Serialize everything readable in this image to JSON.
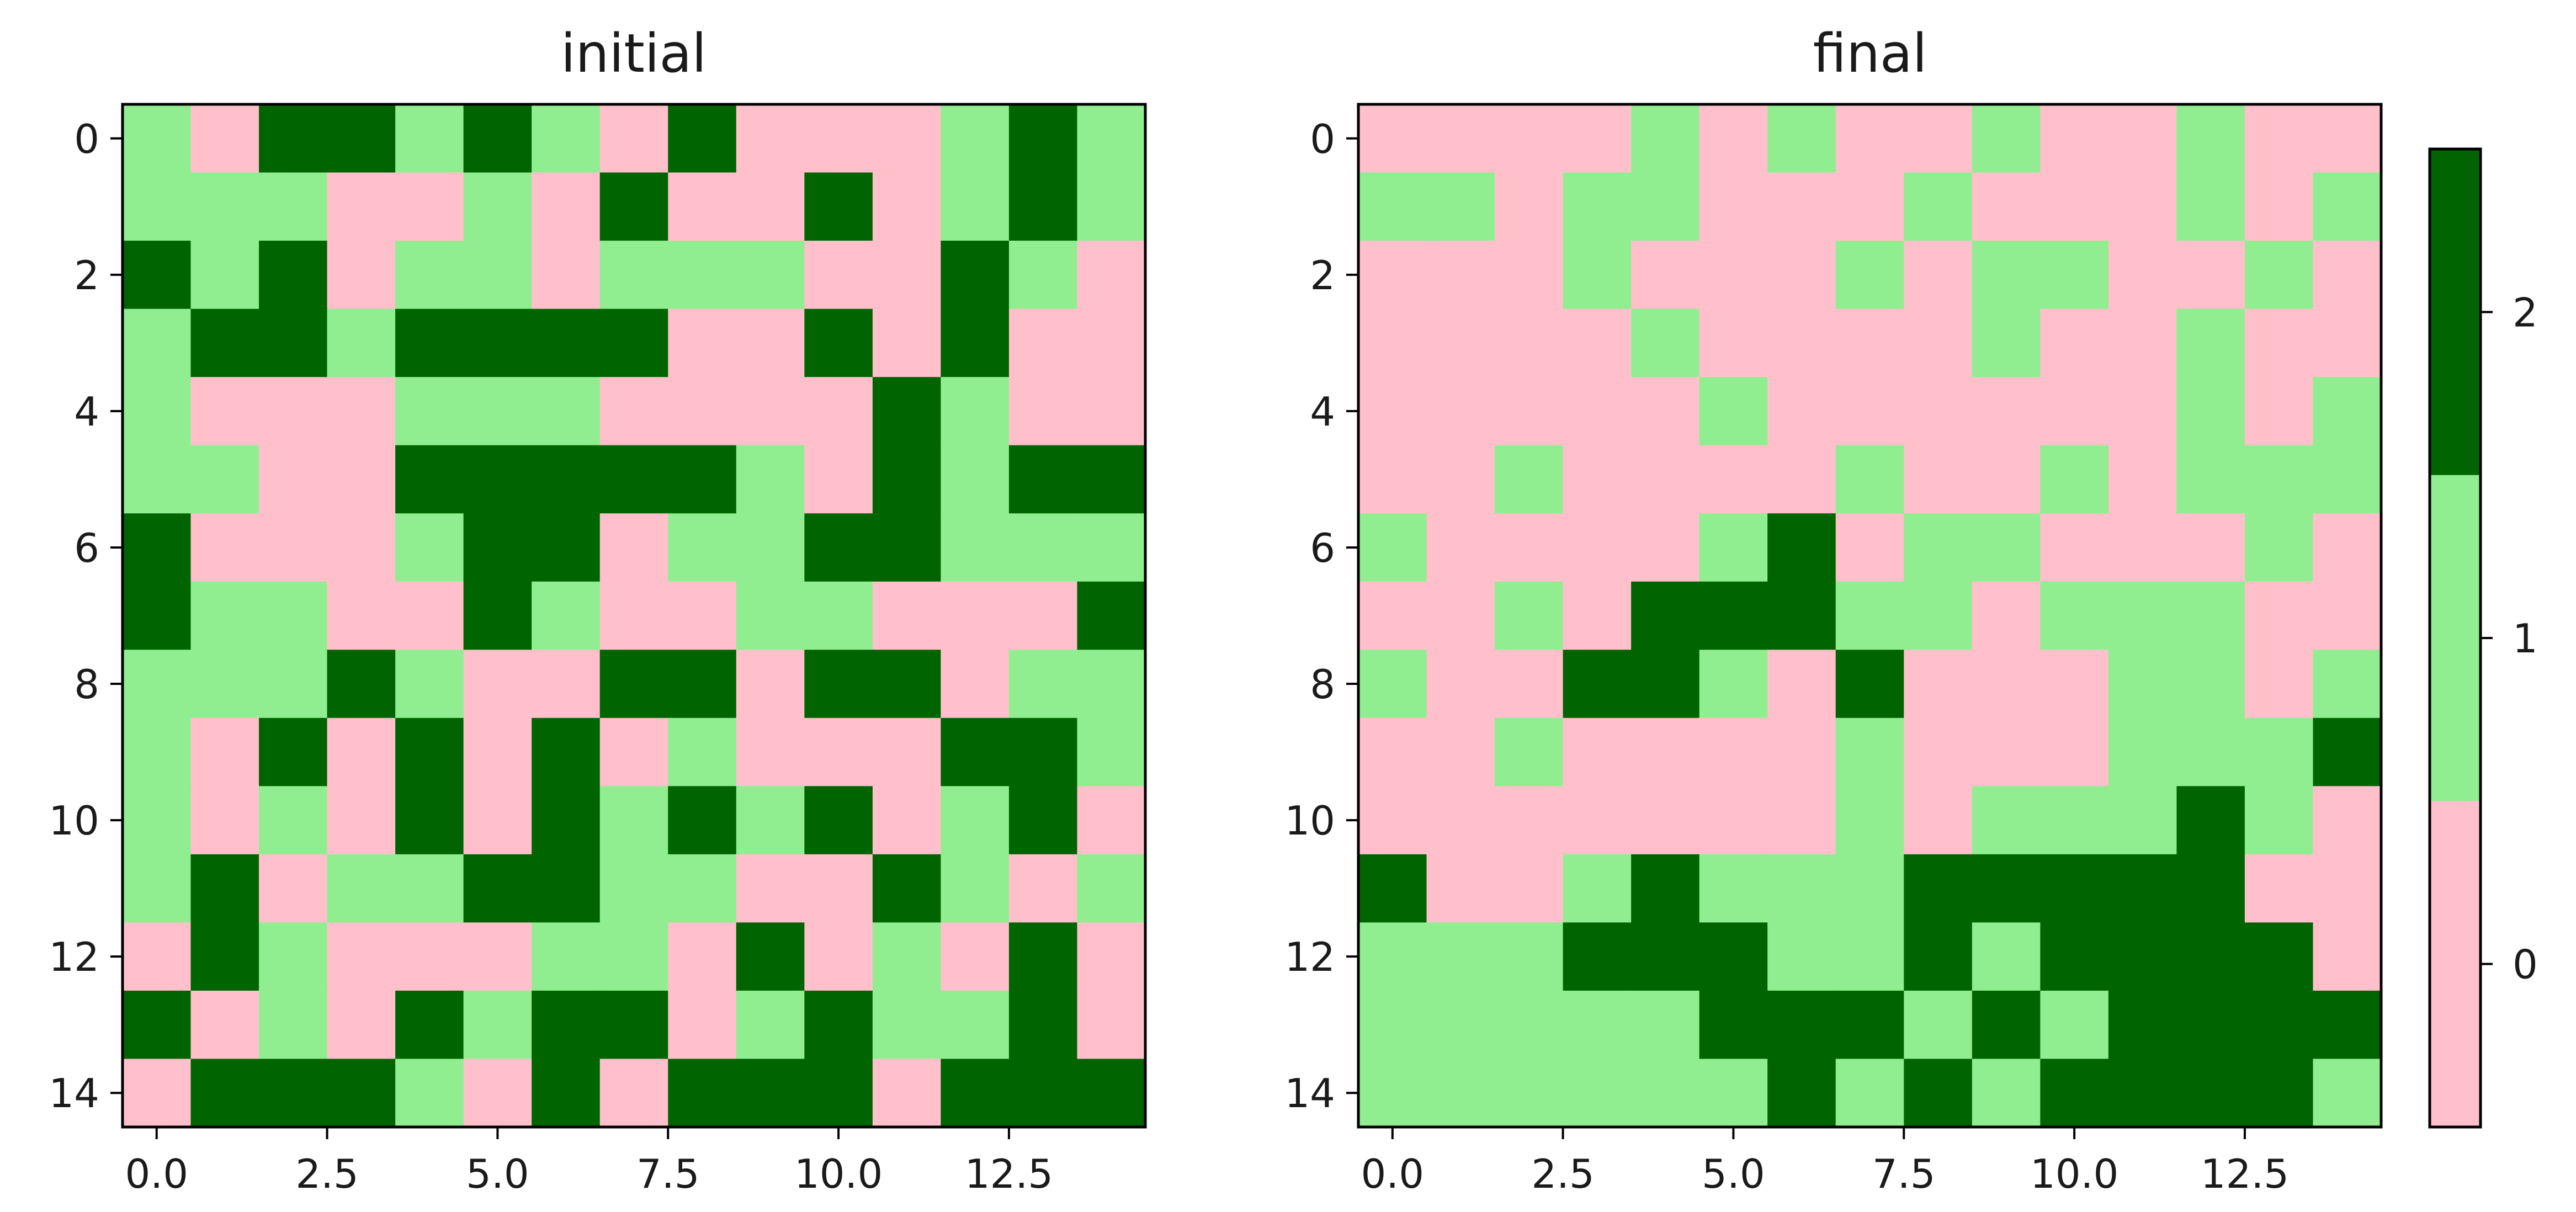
{
  "colors": {
    "0": "#ffc0cb",
    "1": "#90ee90",
    "2": "#006400"
  },
  "colorbar": {
    "ticks": [
      "0",
      "1",
      "2"
    ]
  },
  "chart_data": [
    {
      "type": "heatmap",
      "title": "initial",
      "xticks": [
        "0.0",
        "2.5",
        "5.0",
        "7.5",
        "10.0",
        "12.5"
      ],
      "yticks": [
        "0",
        "2",
        "4",
        "6",
        "8",
        "10",
        "12",
        "14"
      ],
      "xlim": [
        -0.5,
        14.5
      ],
      "ylim": [
        14.5,
        -0.5
      ],
      "values": [
        [
          1,
          0,
          2,
          2,
          1,
          2,
          1,
          0,
          2,
          0,
          0,
          0,
          1,
          2,
          1
        ],
        [
          1,
          1,
          1,
          0,
          0,
          1,
          0,
          2,
          0,
          0,
          2,
          0,
          1,
          2,
          1
        ],
        [
          2,
          1,
          2,
          0,
          1,
          1,
          0,
          1,
          1,
          1,
          0,
          0,
          2,
          1,
          0
        ],
        [
          1,
          2,
          2,
          1,
          2,
          2,
          2,
          2,
          0,
          0,
          2,
          0,
          2,
          0,
          0
        ],
        [
          1,
          0,
          0,
          0,
          1,
          1,
          1,
          0,
          0,
          0,
          0,
          2,
          1,
          0,
          0
        ],
        [
          1,
          1,
          0,
          0,
          2,
          2,
          2,
          2,
          2,
          1,
          0,
          2,
          1,
          2,
          2
        ],
        [
          2,
          0,
          0,
          0,
          1,
          2,
          2,
          0,
          1,
          1,
          2,
          2,
          1,
          1,
          1
        ],
        [
          2,
          1,
          1,
          0,
          0,
          2,
          1,
          0,
          0,
          1,
          1,
          0,
          0,
          0,
          2
        ],
        [
          1,
          1,
          1,
          2,
          1,
          0,
          0,
          2,
          2,
          0,
          2,
          2,
          0,
          1,
          1
        ],
        [
          1,
          0,
          2,
          0,
          2,
          0,
          2,
          0,
          1,
          0,
          0,
          0,
          2,
          2,
          1
        ],
        [
          1,
          0,
          1,
          0,
          2,
          0,
          2,
          1,
          2,
          1,
          2,
          0,
          1,
          2,
          0
        ],
        [
          1,
          2,
          0,
          1,
          1,
          2,
          2,
          1,
          1,
          0,
          0,
          2,
          1,
          0,
          1
        ],
        [
          0,
          2,
          1,
          0,
          0,
          0,
          1,
          1,
          0,
          2,
          0,
          1,
          0,
          2,
          0
        ],
        [
          2,
          0,
          1,
          0,
          2,
          1,
          2,
          2,
          0,
          1,
          2,
          1,
          1,
          2,
          0
        ],
        [
          0,
          2,
          2,
          2,
          1,
          0,
          2,
          0,
          2,
          2,
          2,
          0,
          2,
          2,
          2
        ]
      ]
    },
    {
      "type": "heatmap",
      "title": "final",
      "xticks": [
        "0.0",
        "2.5",
        "5.0",
        "7.5",
        "10.0",
        "12.5"
      ],
      "yticks": [
        "0",
        "2",
        "4",
        "6",
        "8",
        "10",
        "12",
        "14"
      ],
      "xlim": [
        -0.5,
        14.5
      ],
      "ylim": [
        14.5,
        -0.5
      ],
      "values": [
        [
          0,
          0,
          0,
          0,
          1,
          0,
          1,
          0,
          0,
          1,
          0,
          0,
          1,
          0,
          0
        ],
        [
          1,
          1,
          0,
          1,
          1,
          0,
          0,
          0,
          1,
          0,
          0,
          0,
          1,
          0,
          1
        ],
        [
          0,
          0,
          0,
          1,
          0,
          0,
          0,
          1,
          0,
          1,
          1,
          0,
          0,
          1,
          0
        ],
        [
          0,
          0,
          0,
          0,
          1,
          0,
          0,
          0,
          0,
          1,
          0,
          0,
          1,
          0,
          0
        ],
        [
          0,
          0,
          0,
          0,
          0,
          1,
          0,
          0,
          0,
          0,
          0,
          0,
          1,
          0,
          1
        ],
        [
          0,
          0,
          1,
          0,
          0,
          0,
          0,
          1,
          0,
          0,
          1,
          0,
          1,
          1,
          1
        ],
        [
          1,
          0,
          0,
          0,
          0,
          1,
          2,
          0,
          1,
          1,
          0,
          0,
          0,
          1,
          0
        ],
        [
          0,
          0,
          1,
          0,
          2,
          2,
          2,
          1,
          1,
          0,
          1,
          1,
          1,
          0,
          0
        ],
        [
          1,
          0,
          0,
          2,
          2,
          1,
          0,
          2,
          0,
          0,
          0,
          1,
          1,
          0,
          1
        ],
        [
          0,
          0,
          1,
          0,
          0,
          0,
          0,
          1,
          0,
          0,
          0,
          1,
          1,
          1,
          2
        ],
        [
          0,
          0,
          0,
          0,
          0,
          0,
          0,
          1,
          0,
          1,
          1,
          1,
          2,
          1,
          0
        ],
        [
          2,
          0,
          0,
          1,
          2,
          1,
          1,
          1,
          2,
          2,
          2,
          2,
          2,
          0,
          0
        ],
        [
          1,
          1,
          1,
          2,
          2,
          2,
          1,
          1,
          2,
          1,
          2,
          2,
          2,
          2,
          0
        ],
        [
          1,
          1,
          1,
          1,
          1,
          2,
          2,
          2,
          1,
          2,
          1,
          2,
          2,
          2,
          2
        ],
        [
          1,
          1,
          1,
          1,
          1,
          1,
          2,
          1,
          2,
          1,
          2,
          2,
          2,
          2,
          1
        ]
      ]
    }
  ]
}
